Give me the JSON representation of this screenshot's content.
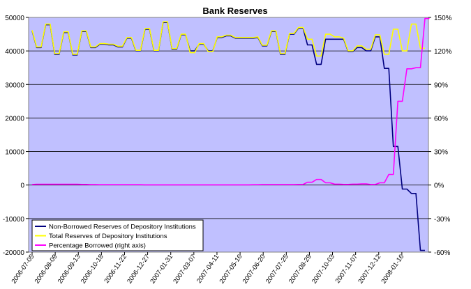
{
  "chart_data": {
    "type": "line",
    "title": "Bank Reserves",
    "x_tick_labels": [
      "2006-07-05",
      "2006-08-09",
      "2006-09-13",
      "2006-10-18",
      "2006-11-22",
      "2006-12-27",
      "2007-01-31",
      "2007-03-07",
      "2007-04-11",
      "2007-05-16",
      "2007-06-20",
      "2007-07-25",
      "2007-08-29",
      "2007-10-03",
      "2007-11-07",
      "2007-12-12",
      "2008-01-16"
    ],
    "y_left": {
      "range": [
        -20000,
        50000
      ],
      "ticks": [
        -20000,
        -10000,
        0,
        10000,
        20000,
        30000,
        40000,
        50000
      ],
      "tick_labels": [
        "-20000",
        "-10000",
        "0",
        "10000",
        "20000",
        "30000",
        "40000",
        "50000"
      ]
    },
    "y_right": {
      "range": [
        -60,
        150
      ],
      "ticks": [
        -60,
        -30,
        0,
        30,
        60,
        90,
        120,
        150
      ],
      "tick_labels": [
        "-60%",
        "-30%",
        "0%",
        "30%",
        "60%",
        "90%",
        "120%",
        "150%"
      ]
    },
    "grid": true,
    "legend_position": "bottom-left",
    "series": [
      {
        "name": "Non-Borrowed Reserves of Depository Institutions",
        "color": "#000080",
        "axis": "left",
        "values": [
          46000,
          41000,
          41000,
          47800,
          47800,
          39000,
          39000,
          45500,
          45500,
          38800,
          38800,
          45800,
          45800,
          41000,
          41000,
          42000,
          42000,
          41800,
          41800,
          41200,
          41200,
          43800,
          43800,
          40000,
          40000,
          46500,
          46500,
          40000,
          40000,
          48500,
          48500,
          40500,
          40500,
          44800,
          44800,
          40000,
          40000,
          42000,
          42000,
          40000,
          40000,
          44000,
          44000,
          44500,
          44500,
          43800,
          43800,
          43800,
          43800,
          43800,
          44000,
          41500,
          41500,
          45800,
          45800,
          39000,
          39000,
          45000,
          45000,
          46800,
          46800,
          41800,
          41800,
          36000,
          36000,
          43500,
          43500,
          43500,
          43500,
          43500,
          39800,
          39800,
          41000,
          41000,
          40000,
          40000,
          44200,
          44200,
          34800,
          34800,
          11500,
          11500,
          -1200,
          -1200,
          -2500,
          -2500,
          -19500,
          -19500
        ]
      },
      {
        "name": "Total Reserves of Depository Institutions",
        "color": "#ffff00",
        "axis": "left",
        "values": [
          46200,
          41200,
          41200,
          48000,
          48000,
          39200,
          39200,
          45700,
          45700,
          39000,
          39000,
          46000,
          46000,
          41200,
          41200,
          42200,
          42200,
          42000,
          42000,
          41400,
          41400,
          44000,
          44000,
          40200,
          40200,
          46700,
          46700,
          40200,
          40200,
          48700,
          48700,
          40700,
          40700,
          45000,
          45000,
          39500,
          39500,
          42200,
          42200,
          39800,
          39800,
          44200,
          44200,
          44700,
          44700,
          44000,
          44000,
          44000,
          44000,
          44000,
          44200,
          41700,
          41700,
          46000,
          46000,
          39200,
          39200,
          45200,
          45200,
          47000,
          47000,
          43500,
          43500,
          38500,
          38500,
          45000,
          45000,
          44200,
          44200,
          43800,
          40000,
          40000,
          41500,
          41500,
          40500,
          40500,
          44800,
          44800,
          39000,
          39000,
          46500,
          46500,
          40000,
          40000,
          48000,
          48000,
          40800,
          40800
        ]
      },
      {
        "name": "Percentage Borrowed (right axis)",
        "color": "#ff00ff",
        "axis": "right",
        "values": [
          0.5,
          0.7,
          0.7,
          0.7,
          0.7,
          0.7,
          0.7,
          0.7,
          0.7,
          0.7,
          0.7,
          0.6,
          0.6,
          0.4,
          0.4,
          0.3,
          0.3,
          0.3,
          0.3,
          0.3,
          0.3,
          0.3,
          0.3,
          0.3,
          0.3,
          0.2,
          0.2,
          0.2,
          0.2,
          0.2,
          0.2,
          0.2,
          0.2,
          0.2,
          0.2,
          0.2,
          0.2,
          0.2,
          0.2,
          0.2,
          0.2,
          0.2,
          0.2,
          0.2,
          0.2,
          0.2,
          0.2,
          0.2,
          0.2,
          0.3,
          0.3,
          0.4,
          0.4,
          0.4,
          0.4,
          0.4,
          0.4,
          0.4,
          0.4,
          0.5,
          0.5,
          2.5,
          2.5,
          5.0,
          5.0,
          2.0,
          2.0,
          0.8,
          0.8,
          0.6,
          0.6,
          0.8,
          0.8,
          1.0,
          1.0,
          0.5,
          0.5,
          2.0,
          2.0,
          9.5,
          9.5,
          75,
          75,
          104,
          104,
          105,
          105,
          149,
          149
        ]
      }
    ]
  }
}
